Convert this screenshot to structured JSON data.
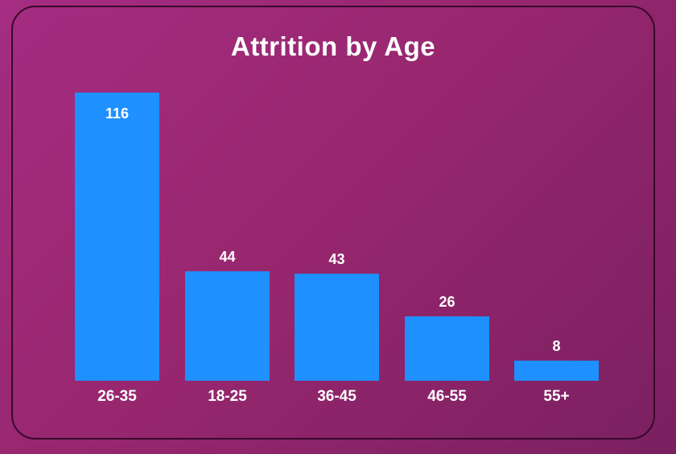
{
  "page": {
    "background_gradient_from": "#A52C82",
    "background_gradient_to": "#7A2060",
    "card_border_color": "#38092C"
  },
  "chart_data": {
    "type": "bar",
    "title": "Attrition by Age",
    "categories": [
      "26-35",
      "18-25",
      "36-45",
      "46-55",
      "55+"
    ],
    "values": [
      116,
      44,
      43,
      26,
      8
    ],
    "xlabel": "",
    "ylabel": "",
    "ylim": [
      0,
      116
    ],
    "grid": false,
    "legend": "none",
    "value_labels": true,
    "bar_color": "#1E90FF",
    "label_color": "#FFFFFF",
    "title_color": "#FFFFFF"
  }
}
